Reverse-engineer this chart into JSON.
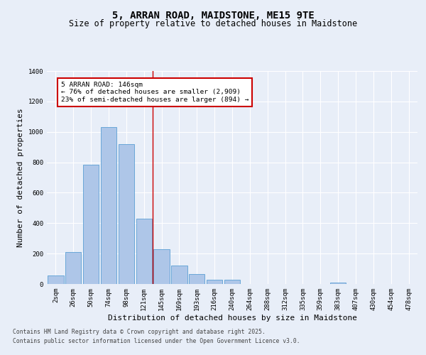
{
  "title": "5, ARRAN ROAD, MAIDSTONE, ME15 9TE",
  "subtitle": "Size of property relative to detached houses in Maidstone",
  "xlabel": "Distribution of detached houses by size in Maidstone",
  "ylabel": "Number of detached properties",
  "categories": [
    "2sqm",
    "26sqm",
    "50sqm",
    "74sqm",
    "98sqm",
    "121sqm",
    "145sqm",
    "169sqm",
    "193sqm",
    "216sqm",
    "240sqm",
    "264sqm",
    "288sqm",
    "312sqm",
    "335sqm",
    "359sqm",
    "383sqm",
    "407sqm",
    "430sqm",
    "454sqm",
    "478sqm"
  ],
  "values": [
    55,
    210,
    785,
    1030,
    920,
    430,
    230,
    120,
    65,
    30,
    30,
    0,
    0,
    0,
    0,
    0,
    10,
    0,
    0,
    0,
    0
  ],
  "bar_color": "#aec6e8",
  "bar_edge_color": "#5a9fd4",
  "bg_color": "#e8eef8",
  "plot_bg_color": "#e8eef8",
  "grid_color": "#ffffff",
  "vline_index": 5.5,
  "vline_color": "#cc0000",
  "annotation_text": "5 ARRAN ROAD: 146sqm\n← 76% of detached houses are smaller (2,909)\n23% of semi-detached houses are larger (894) →",
  "annotation_box_color": "#cc0000",
  "ylim": [
    0,
    1400
  ],
  "yticks": [
    0,
    200,
    400,
    600,
    800,
    1000,
    1200,
    1400
  ],
  "footer_line1": "Contains HM Land Registry data © Crown copyright and database right 2025.",
  "footer_line2": "Contains public sector information licensed under the Open Government Licence v3.0.",
  "title_fontsize": 10,
  "subtitle_fontsize": 8.5,
  "axis_label_fontsize": 8,
  "tick_fontsize": 6.5,
  "annotation_fontsize": 6.8,
  "footer_fontsize": 5.8
}
